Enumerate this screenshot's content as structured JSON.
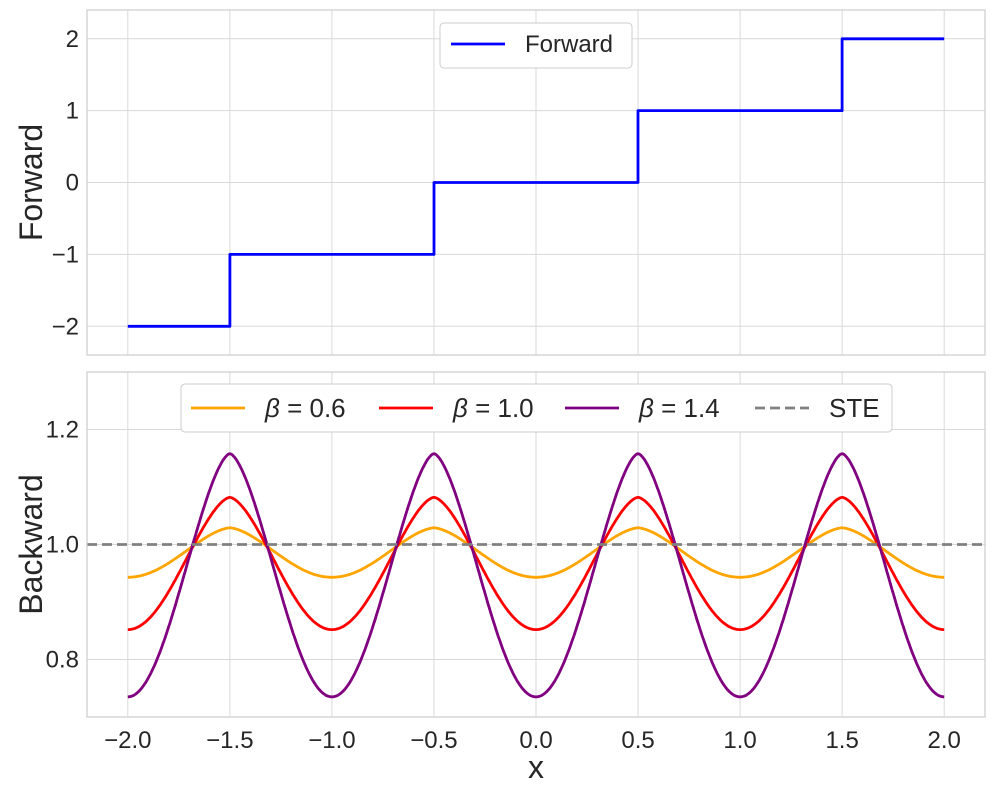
{
  "chart_data": [
    {
      "type": "line",
      "ylabel": "Forward",
      "xlim": [
        -2.2,
        2.2
      ],
      "ylim": [
        -2.4,
        2.4
      ],
      "yticks": [
        -2,
        -1,
        0,
        1,
        2
      ],
      "ytick_labels": [
        "−2",
        "−1",
        "0",
        "1",
        "2"
      ],
      "grid": true,
      "legend_placement": "top-center",
      "series": [
        {
          "name": "Forward",
          "color": "#0000ff",
          "function": "round(x)",
          "x": [
            -2.0,
            -1.5,
            -1.5,
            -0.5,
            -0.5,
            0.5,
            0.5,
            1.5,
            1.5,
            2.0
          ],
          "values": [
            -2,
            -2,
            -1,
            -1,
            0,
            0,
            1,
            1,
            2,
            2
          ]
        }
      ]
    },
    {
      "type": "line",
      "xlabel": "x",
      "ylabel": "Backward",
      "xlim": [
        -2.2,
        2.2
      ],
      "ylim": [
        0.7,
        1.3
      ],
      "xticks": [
        -2.0,
        -1.5,
        -1.0,
        -0.5,
        0.0,
        0.5,
        1.0,
        1.5,
        2.0
      ],
      "xtick_labels": [
        "−2.0",
        "−1.5",
        "−1.0",
        "−0.5",
        "0.0",
        "0.5",
        "1.0",
        "1.5",
        "2.0"
      ],
      "yticks": [
        0.8,
        1.0,
        1.2
      ],
      "ytick_labels": [
        "0.8",
        "1.0",
        "1.2"
      ],
      "grid": true,
      "legend_placement": "top-center",
      "legend_columns": 4,
      "series": [
        {
          "name_prefix": "β",
          "name_rest": " = 0.6",
          "beta": 0.6,
          "color": "#ffa500",
          "style": "solid",
          "min": 0.943,
          "max": 1.029
        },
        {
          "name_prefix": "β",
          "name_rest": " = 1.0",
          "beta": 1.0,
          "color": "#ff0000",
          "style": "solid",
          "min": 0.852,
          "max": 1.082
        },
        {
          "name_prefix": "β",
          "name_rest": " = 1.4",
          "beta": 1.4,
          "color": "#800080",
          "style": "solid",
          "min": 0.735,
          "max": 1.158
        },
        {
          "name": "STE",
          "color": "#808080",
          "style": "dashed",
          "values": [
            1.0,
            1.0
          ]
        }
      ]
    }
  ]
}
